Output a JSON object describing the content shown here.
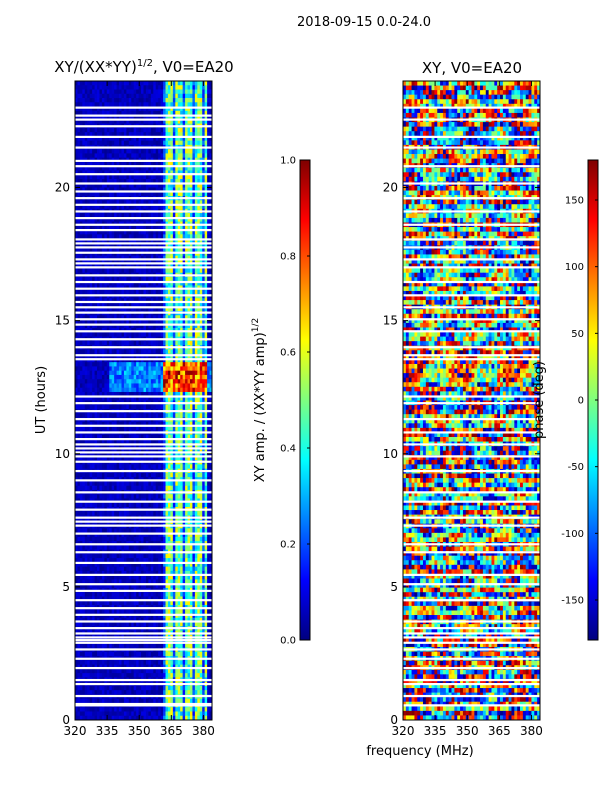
{
  "figure": {
    "suptitle": "2018-09-15 0.0-24.0",
    "shared_xlabel": "frequency (MHz)"
  },
  "colors": {
    "jet": [
      "#00007f",
      "#0000ff",
      "#007fff",
      "#00ffff",
      "#7fff7f",
      "#ffff00",
      "#ff7f00",
      "#ff0000",
      "#7f0000"
    ],
    "flag_gap": "#ffffff"
  },
  "chart_data": [
    {
      "type": "heatmap",
      "title_text": "XY/(XX*YY)",
      "title_exponent": "1/2",
      "title_suffix": ", V0=EA20",
      "xlabel": "",
      "ylabel": "UT (hours)",
      "xlim": [
        320,
        384
      ],
      "ylim": [
        0,
        24
      ],
      "xticks": [
        "320",
        "335",
        "350",
        "365",
        "380"
      ],
      "xtick_values": [
        320,
        335,
        350,
        365,
        380
      ],
      "yticks": [
        "0",
        "5",
        "10",
        "15",
        "20"
      ],
      "ytick_values": [
        0,
        5,
        10,
        15,
        20
      ],
      "low_signal_band_MHz": [
        320,
        361
      ],
      "active_band_MHz": [
        361,
        382
      ],
      "burst_hours": [
        12.4,
        13.4
      ],
      "colorbar": {
        "label_text": "XY amp. / (XX*YY amp)",
        "label_exponent": "1/2",
        "range": [
          0.0,
          1.0
        ],
        "ticks": [
          "0.0",
          "0.2",
          "0.4",
          "0.6",
          "0.8",
          "1.0"
        ],
        "tick_values": [
          0.0,
          0.2,
          0.4,
          0.6,
          0.8,
          1.0
        ]
      },
      "flagged_hours": [
        0.55,
        0.6,
        0.9,
        1.35,
        1.5,
        1.95,
        2.3,
        2.65,
        2.9,
        3.0,
        3.1,
        3.25,
        3.45,
        3.7,
        3.95,
        4.2,
        4.5,
        4.85,
        5.1,
        5.45,
        5.9,
        6.3,
        6.6,
        7.0,
        7.3,
        7.45,
        7.6,
        7.9,
        8.2,
        8.55,
        9.0,
        9.35,
        9.7,
        9.9,
        10.05,
        10.2,
        10.35,
        10.55,
        10.8,
        11.05,
        11.3,
        11.6,
        11.9,
        12.15,
        13.55,
        13.7,
        14.0,
        14.3,
        14.6,
        14.85,
        15.05,
        15.3,
        15.5,
        15.7,
        15.95,
        16.2,
        16.45,
        16.7,
        17.0,
        17.15,
        17.3,
        17.55,
        17.75,
        17.9,
        18.05,
        18.4,
        18.6,
        18.85,
        19.1,
        19.35,
        19.6,
        19.85,
        20.15,
        20.5,
        20.8,
        21.0,
        21.5,
        21.9,
        22.3,
        22.55,
        22.7,
        23.0
      ]
    },
    {
      "type": "heatmap",
      "title_text": "XY, V0=EA20",
      "xlabel": "frequency (MHz)",
      "ylabel": "",
      "xlim": [
        320,
        384
      ],
      "ylim": [
        0,
        24
      ],
      "xticks": [
        "320",
        "335",
        "350",
        "365",
        "380"
      ],
      "xtick_values": [
        320,
        335,
        350,
        365,
        380
      ],
      "yticks": [
        "0",
        "5",
        "10",
        "15",
        "20"
      ],
      "ytick_values": [
        0,
        5,
        10,
        15,
        20
      ],
      "colorbar": {
        "label_text": "phase (deg)",
        "range": [
          -180,
          180
        ],
        "ticks": [
          "-150",
          "-100",
          "-50",
          "0",
          "50",
          "100",
          "150"
        ],
        "tick_values": [
          -150,
          -100,
          -50,
          0,
          50,
          100,
          150
        ]
      },
      "flagged_hours": [
        0.55,
        0.9,
        1.35,
        1.5,
        1.95,
        2.3,
        2.65,
        2.9,
        3.1,
        3.25,
        3.45,
        3.7,
        4.5,
        5.1,
        5.45,
        6.3,
        6.6,
        7.3,
        7.6,
        8.2,
        8.55,
        9.35,
        9.9,
        10.35,
        10.8,
        11.3,
        11.9,
        12.15,
        13.55,
        13.7,
        14.0,
        14.6,
        15.05,
        15.5,
        15.95,
        16.45,
        17.0,
        17.3,
        17.75,
        18.05,
        18.6,
        19.1,
        19.6,
        20.15,
        20.8,
        21.5,
        21.9,
        22.55,
        23.0
      ]
    }
  ]
}
